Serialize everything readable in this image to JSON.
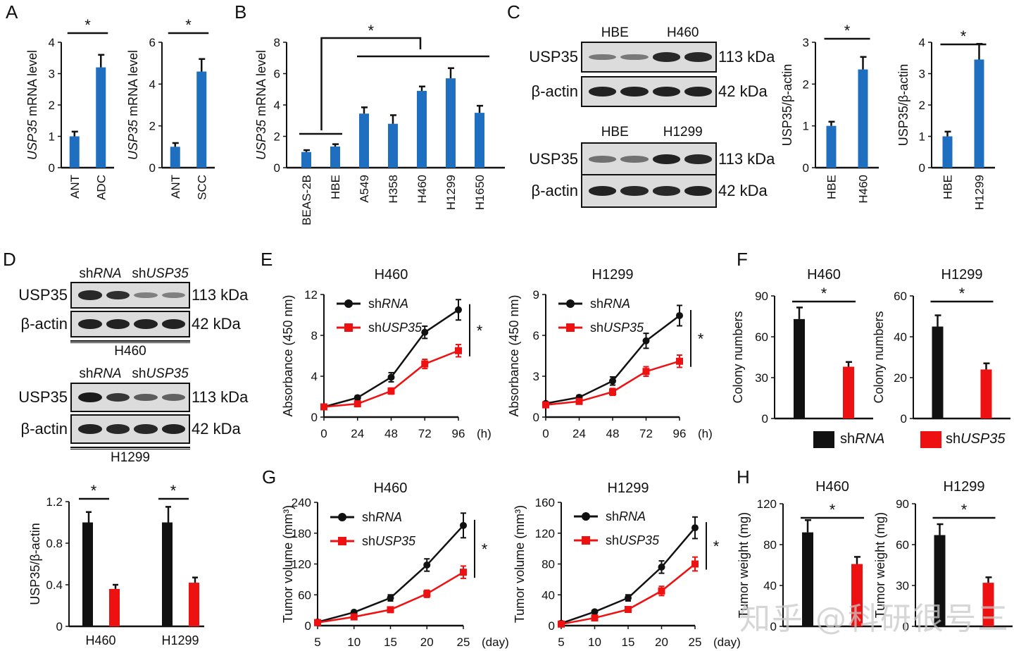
{
  "panels": {
    "A": "A",
    "B": "B",
    "C": "C",
    "D": "D",
    "E": "E",
    "F": "F",
    "G": "G",
    "H": "H"
  },
  "colors": {
    "blue": "#1f6fc1",
    "black": "#111111",
    "red": "#ee1111"
  },
  "blots": {
    "C_top": {
      "groups": [
        "HBE",
        "H460"
      ],
      "rows": [
        {
          "name": "USP35",
          "kda": "113 kDa"
        },
        {
          "name": "β-actin",
          "kda": "42 kDa"
        }
      ],
      "intensity": [
        [
          0.35,
          0.35,
          0.9,
          0.9
        ],
        [
          0.95,
          0.95,
          0.95,
          0.95
        ]
      ]
    },
    "C_bottom": {
      "groups": [
        "HBE",
        "H1299"
      ],
      "rows": [
        {
          "name": "USP35",
          "kda": "113 kDa"
        },
        {
          "name": "β-actin",
          "kda": "42 kDa"
        }
      ],
      "intensity": [
        [
          0.4,
          0.4,
          0.95,
          0.9
        ],
        [
          0.95,
          0.9,
          0.9,
          0.95
        ]
      ]
    },
    "D_top": {
      "groups": [
        "shRNA",
        "shUSP35"
      ],
      "group_prefix": "sh",
      "group_suffix": [
        "RNA",
        "USP35"
      ],
      "rows": [
        {
          "name": "USP35",
          "kda": "113 kDa"
        },
        {
          "name": "β-actin",
          "kda": "42 kDa"
        }
      ],
      "intensity": [
        [
          0.9,
          0.85,
          0.3,
          0.3
        ],
        [
          0.95,
          0.95,
          0.95,
          0.95
        ]
      ],
      "cell_line": "H460"
    },
    "D_bottom": {
      "groups": [
        "shRNA",
        "shUSP35"
      ],
      "group_prefix": "sh",
      "group_suffix": [
        "RNA",
        "USP35"
      ],
      "rows": [
        {
          "name": "USP35",
          "kda": "113 kDa"
        },
        {
          "name": "β-actin",
          "kda": "42 kDa"
        }
      ],
      "intensity": [
        [
          1.0,
          0.8,
          0.55,
          0.5
        ],
        [
          0.95,
          0.9,
          0.9,
          0.95
        ]
      ],
      "cell_line": "H1299"
    }
  },
  "legend_F": {
    "items": [
      {
        "label_prefix": "sh",
        "label_italic": "RNA",
        "color": "#111111"
      },
      {
        "label_prefix": "sh",
        "label_italic": "USP35",
        "color": "#ee1111"
      }
    ]
  },
  "watermark": "知乎 @科研很号三",
  "chart_data": [
    {
      "id": "A1",
      "type": "bar",
      "title": "",
      "ylabel": "USP35 mRNA level",
      "ylabel_italic_part": "USP35",
      "ylim": [
        0,
        4
      ],
      "yticks": [
        0,
        1,
        2,
        3,
        4
      ],
      "categories": [
        "ANT",
        "ADC"
      ],
      "values": [
        1.0,
        3.2
      ],
      "errors": [
        0.15,
        0.4
      ],
      "colors": [
        "#1f6fc1",
        "#1f6fc1"
      ],
      "significance": [
        {
          "from": 0,
          "to": 1,
          "label": "*"
        }
      ]
    },
    {
      "id": "A2",
      "type": "bar",
      "title": "",
      "ylabel": "USP35 mRNA level",
      "ylabel_italic_part": "USP35",
      "ylim": [
        0,
        6
      ],
      "yticks": [
        0,
        2,
        4,
        6
      ],
      "categories": [
        "ANT",
        "SCC"
      ],
      "values": [
        1.0,
        4.6
      ],
      "errors": [
        0.18,
        0.6
      ],
      "colors": [
        "#1f6fc1",
        "#1f6fc1"
      ],
      "significance": [
        {
          "from": 0,
          "to": 1,
          "label": "*"
        }
      ]
    },
    {
      "id": "B",
      "type": "bar",
      "title": "",
      "ylabel": "USP35 mRNA level",
      "ylabel_italic_part": "USP35",
      "ylim": [
        0,
        8
      ],
      "yticks": [
        0,
        2,
        4,
        6,
        8
      ],
      "categories": [
        "BEAS-2B",
        "HBE",
        "A549",
        "H358",
        "H460",
        "H1299",
        "H1650"
      ],
      "values": [
        1.0,
        1.35,
        3.45,
        2.8,
        4.9,
        5.7,
        3.5
      ],
      "errors": [
        0.12,
        0.15,
        0.4,
        0.55,
        0.28,
        0.65,
        0.45
      ],
      "colors": [
        "#1f6fc1",
        "#1f6fc1",
        "#1f6fc1",
        "#1f6fc1",
        "#1f6fc1",
        "#1f6fc1",
        "#1f6fc1"
      ],
      "significance_label": "*",
      "bracket": {
        "group1": [
          0,
          1
        ],
        "group2": [
          2,
          6
        ]
      }
    },
    {
      "id": "C1",
      "type": "bar",
      "title": "",
      "ylabel": "USP35/β-actin",
      "ylim": [
        0,
        3
      ],
      "yticks": [
        0,
        1,
        2,
        3
      ],
      "categories": [
        "HBE",
        "H460"
      ],
      "values": [
        1.0,
        2.35
      ],
      "errors": [
        0.1,
        0.3
      ],
      "colors": [
        "#1f6fc1",
        "#1f6fc1"
      ],
      "significance": [
        {
          "from": 0,
          "to": 1,
          "label": "*"
        }
      ]
    },
    {
      "id": "C2",
      "type": "bar",
      "title": "",
      "ylabel": "USP35/β-actin",
      "ylim": [
        0,
        4
      ],
      "yticks": [
        0,
        1,
        2,
        3,
        4
      ],
      "categories": [
        "HBE",
        "H1299"
      ],
      "values": [
        1.0,
        3.45
      ],
      "errors": [
        0.15,
        0.5
      ],
      "colors": [
        "#1f6fc1",
        "#1f6fc1"
      ],
      "significance": [
        {
          "from": 0,
          "to": 1,
          "label": "*"
        }
      ]
    },
    {
      "id": "D",
      "type": "bar",
      "title": "",
      "ylabel": "USP35/β-actin",
      "ylim": [
        0,
        1.2
      ],
      "yticks": [
        "0",
        "0.4",
        "0.8",
        "1.2"
      ],
      "yticks_num": [
        0,
        0.4,
        0.8,
        1.2
      ],
      "groups": [
        "H460",
        "H1299"
      ],
      "series": [
        {
          "name": "shRNA",
          "color": "#111111",
          "values": [
            1.0,
            1.0
          ],
          "errors": [
            0.1,
            0.15
          ]
        },
        {
          "name": "shUSP35",
          "color": "#ee1111",
          "values": [
            0.36,
            0.42
          ],
          "errors": [
            0.04,
            0.05
          ]
        }
      ],
      "significance_label": "*"
    },
    {
      "id": "E1",
      "type": "line",
      "title": "H460",
      "xlabel": "(h)",
      "ylabel": "Absorbance (450 nm)",
      "ylim": [
        0,
        12
      ],
      "yticks": [
        0,
        4,
        8,
        12
      ],
      "x": [
        0,
        24,
        48,
        72,
        96
      ],
      "xlim": [
        0,
        96
      ],
      "series": [
        {
          "name": "shRNA",
          "color": "#111111",
          "marker": "circle",
          "values": [
            1.0,
            1.9,
            3.9,
            8.3,
            10.5
          ],
          "errors": [
            0.1,
            0.2,
            0.45,
            0.6,
            1.0
          ]
        },
        {
          "name": "shUSP35",
          "color": "#ee1111",
          "marker": "square",
          "values": [
            1.0,
            1.3,
            2.55,
            5.2,
            6.5
          ],
          "errors": [
            0.1,
            0.15,
            0.3,
            0.45,
            0.6
          ]
        }
      ],
      "significance_label": "*"
    },
    {
      "id": "E2",
      "type": "line",
      "title": "H1299",
      "xlabel": "(h)",
      "ylabel": "Absorbance (450 nm)",
      "ylim": [
        0,
        9
      ],
      "yticks": [
        0,
        3,
        6,
        9
      ],
      "x": [
        0,
        24,
        48,
        72,
        96
      ],
      "xlim": [
        0,
        96
      ],
      "series": [
        {
          "name": "shRNA",
          "color": "#111111",
          "marker": "circle",
          "values": [
            1.0,
            1.45,
            2.65,
            5.6,
            7.45
          ],
          "errors": [
            0.1,
            0.15,
            0.3,
            0.55,
            0.75
          ]
        },
        {
          "name": "shUSP35",
          "color": "#ee1111",
          "marker": "square",
          "values": [
            0.9,
            1.15,
            1.85,
            3.35,
            4.1
          ],
          "errors": [
            0.1,
            0.12,
            0.25,
            0.35,
            0.45
          ]
        }
      ],
      "significance_label": "*"
    },
    {
      "id": "F1",
      "type": "bar",
      "title": "H460",
      "ylabel": "Colony numbers",
      "ylim": [
        0,
        90
      ],
      "yticks": [
        0,
        30,
        60,
        90
      ],
      "categories": [
        "shRNA",
        "shUSP35"
      ],
      "values": [
        73,
        38
      ],
      "errors": [
        8.5,
        3.5
      ],
      "colors": [
        "#111111",
        "#ee1111"
      ],
      "significance": [
        {
          "from": 0,
          "to": 1,
          "label": "*"
        }
      ],
      "hide_xticks": true
    },
    {
      "id": "F2",
      "type": "bar",
      "title": "H1299",
      "ylabel": "Colony numbers",
      "ylim": [
        0,
        60
      ],
      "yticks": [
        0,
        20,
        40,
        60
      ],
      "categories": [
        "shRNA",
        "shUSP35"
      ],
      "values": [
        45,
        24
      ],
      "errors": [
        5.5,
        3.0
      ],
      "colors": [
        "#111111",
        "#ee1111"
      ],
      "significance": [
        {
          "from": 0,
          "to": 1,
          "label": "*"
        }
      ],
      "hide_xticks": true
    },
    {
      "id": "G1",
      "type": "line",
      "title": "H460",
      "xlabel": "(day)",
      "ylabel": "Tumor volume (mm³)",
      "ylim": [
        0,
        240
      ],
      "yticks": [
        0,
        60,
        120,
        180,
        240
      ],
      "x": [
        5,
        10,
        15,
        20,
        25
      ],
      "xlim": [
        5,
        25
      ],
      "series": [
        {
          "name": "shRNA",
          "color": "#111111",
          "marker": "circle",
          "values": [
            7,
            26,
            54,
            118,
            195
          ],
          "errors": [
            2,
            3,
            6,
            12,
            24
          ]
        },
        {
          "name": "shUSP35",
          "color": "#ee1111",
          "marker": "square",
          "values": [
            6,
            17,
            31,
            62,
            104
          ],
          "errors": [
            2,
            3,
            4,
            7,
            12
          ]
        }
      ],
      "significance_label": "*"
    },
    {
      "id": "G2",
      "type": "line",
      "title": "H1299",
      "xlabel": "(day)",
      "ylabel": "Tumor volume (mm³)",
      "ylim": [
        0,
        160
      ],
      "yticks": [
        0,
        40,
        80,
        120,
        160
      ],
      "x": [
        5,
        10,
        15,
        20,
        25
      ],
      "xlim": [
        5,
        25
      ],
      "series": [
        {
          "name": "shRNA",
          "color": "#111111",
          "marker": "circle",
          "values": [
            3,
            18,
            36,
            76,
            127
          ],
          "errors": [
            1,
            2,
            4,
            8,
            14
          ]
        },
        {
          "name": "shUSP35",
          "color": "#ee1111",
          "marker": "square",
          "values": [
            2,
            10,
            21,
            45,
            80
          ],
          "errors": [
            1,
            2,
            3,
            6,
            9
          ]
        }
      ],
      "significance_label": "*"
    },
    {
      "id": "H1",
      "type": "bar",
      "title": "H460",
      "ylabel": "Tumor weight (mg)",
      "ylim": [
        0,
        120
      ],
      "yticks": [
        0,
        40,
        80,
        120
      ],
      "categories": [
        "shRNA",
        "shUSP35"
      ],
      "values": [
        92,
        61
      ],
      "errors": [
        12,
        7
      ],
      "colors": [
        "#111111",
        "#ee1111"
      ],
      "significance": [
        {
          "from": 0,
          "to": 1,
          "label": "*"
        }
      ],
      "hide_xticks": true
    },
    {
      "id": "H2",
      "type": "bar",
      "title": "H1299",
      "ylabel": "Tumor weight (mg)",
      "ylim": [
        0,
        90
      ],
      "yticks": [
        0,
        30,
        60,
        90
      ],
      "categories": [
        "shRNA",
        "shUSP35"
      ],
      "values": [
        67,
        32
      ],
      "errors": [
        8,
        4
      ],
      "colors": [
        "#111111",
        "#ee1111"
      ],
      "significance": [
        {
          "from": 0,
          "to": 1,
          "label": "*"
        }
      ],
      "hide_xticks": true
    }
  ]
}
